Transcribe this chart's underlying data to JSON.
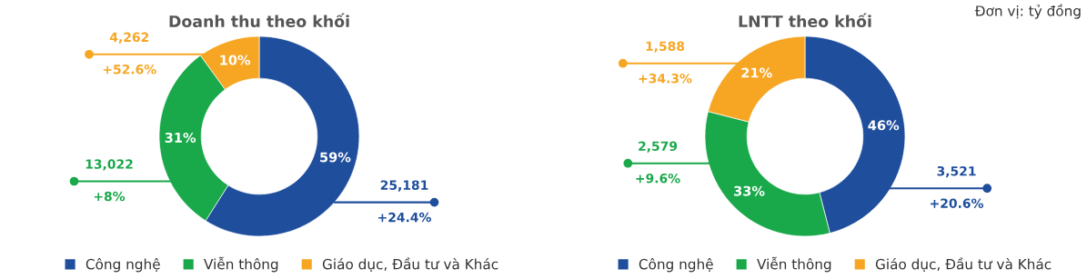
{
  "chart_data": [
    {
      "type": "donut",
      "title": "Doanh thu theo khối",
      "categories": [
        "Công nghệ",
        "Viễn thông",
        "Giáo dục, Đầu tư và Khác"
      ],
      "values": [
        59,
        31,
        10
      ],
      "colors": [
        "#1f4e9c",
        "#19a84a",
        "#f6a623"
      ],
      "value_labels": [
        "59%",
        "31%",
        "10%"
      ],
      "annotations": [
        "25,181",
        "+24.4%",
        "13,022",
        "+8%",
        "4,262",
        "+52.6%"
      ],
      "legend": "bottom"
    },
    {
      "type": "donut",
      "title": "LNTT theo khối",
      "categories": [
        "Công nghệ",
        "Viễn thông",
        "Giáo dục, Đầu tư và Khác"
      ],
      "values": [
        46,
        33,
        21
      ],
      "colors": [
        "#1f4e9c",
        "#19a84a",
        "#f6a623"
      ],
      "value_labels": [
        "46%",
        "33%",
        "21%"
      ],
      "annotations": [
        "3,521",
        "+20.6%",
        "2,579",
        "+9.6%",
        "1,588",
        "+34.3%",
        "Đơn vị: tỷ đồng"
      ],
      "legend": "bottom"
    }
  ]
}
